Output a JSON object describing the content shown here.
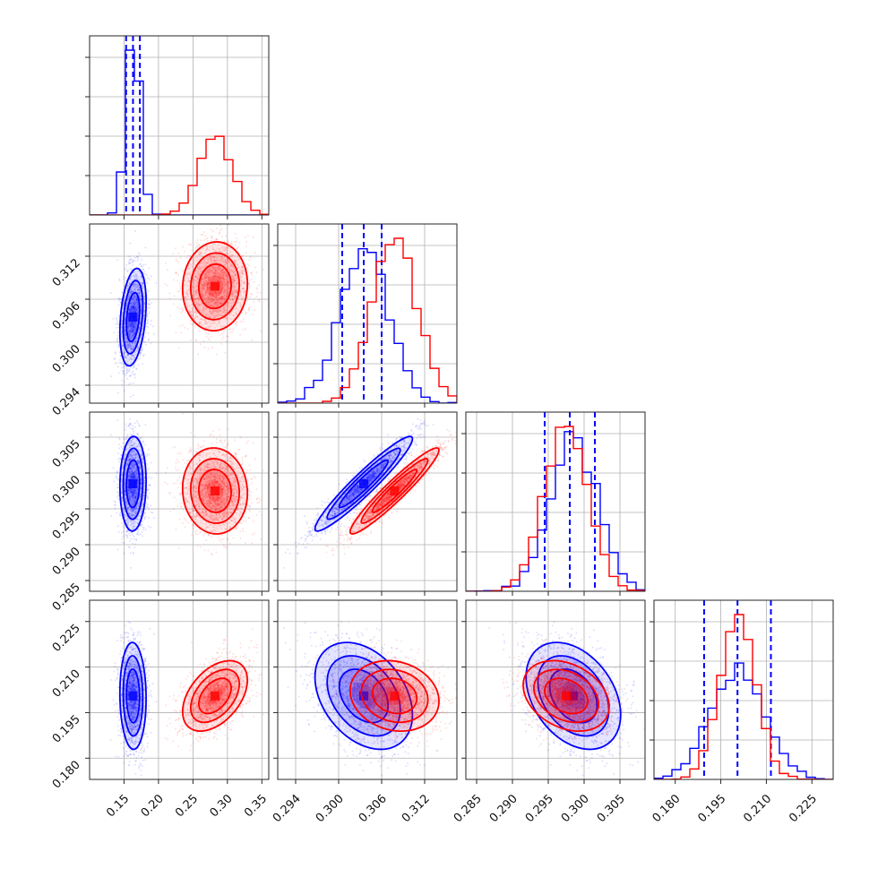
{
  "chart_data": {
    "type": "corner",
    "grid": true,
    "colors": {
      "model_a": "#0000ff",
      "model_b": "#ff0000"
    },
    "params": [
      {
        "range": [
          0.1,
          0.36
        ],
        "ticks": [
          "0.15",
          "0.20",
          "0.25",
          "0.30",
          "0.35"
        ],
        "tick_values": [
          0.15,
          0.2,
          0.25,
          0.3,
          0.35
        ]
      },
      {
        "range": [
          0.2915,
          0.3165
        ],
        "ticks": [
          "0.294",
          "0.300",
          "0.306",
          "0.312"
        ],
        "tick_values": [
          0.294,
          0.3,
          0.306,
          0.312
        ]
      },
      {
        "range": [
          0.2835,
          0.3085
        ],
        "ticks": [
          "0.285",
          "0.290",
          "0.295",
          "0.300",
          "0.305"
        ],
        "tick_values": [
          0.285,
          0.29,
          0.295,
          0.3,
          0.305
        ]
      },
      {
        "range": [
          0.173,
          0.232
        ],
        "ticks": [
          "0.180",
          "0.195",
          "0.210",
          "0.225"
        ],
        "tick_values": [
          0.18,
          0.195,
          0.21,
          0.225
        ]
      }
    ],
    "series": [
      {
        "color": "#0000ff",
        "mean": [
          0.163,
          0.3035,
          0.2985,
          0.2005
        ],
        "sd": [
          0.0095,
          0.0034,
          0.0033,
          0.0088
        ],
        "corr": [
          [
            1,
            0.3,
            0.05,
            -0.05
          ],
          [
            0.3,
            1,
            0.95,
            -0.35
          ],
          [
            0.05,
            0.95,
            1,
            -0.35
          ],
          [
            -0.05,
            -0.35,
            -0.35,
            1
          ]
        ],
        "quantiles": [
          [
            0.153,
            0.163,
            0.173
          ],
          [
            0.3005,
            0.3035,
            0.306
          ],
          [
            0.2945,
            0.298,
            0.3015
          ],
          [
            0.1895,
            0.2005,
            0.2115
          ]
        ]
      },
      {
        "color": "#ff0000",
        "mean": [
          0.282,
          0.3078,
          0.2975,
          0.2005
        ],
        "sd": [
          0.0235,
          0.0031,
          0.003,
          0.0058
        ],
        "corr": [
          [
            1,
            0.05,
            -0.05,
            0.45
          ],
          [
            0.05,
            1,
            0.95,
            -0.15
          ],
          [
            -0.05,
            0.95,
            1,
            -0.3
          ],
          [
            0.45,
            -0.15,
            -0.3,
            1
          ]
        ],
        "quantiles": null
      }
    ]
  }
}
